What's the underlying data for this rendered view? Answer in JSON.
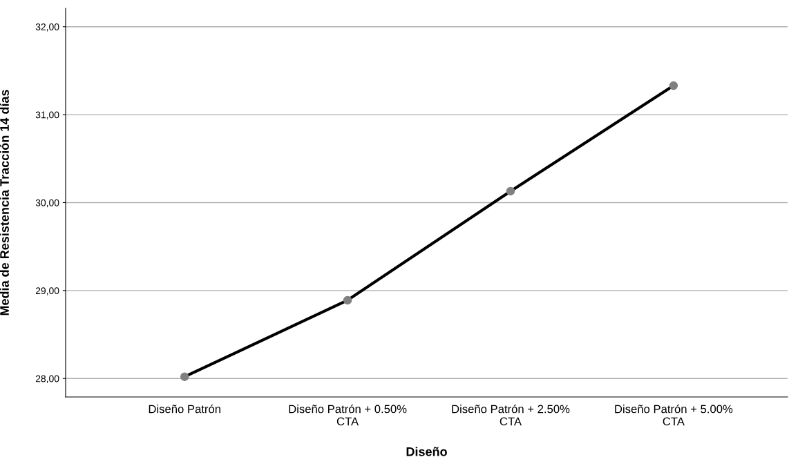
{
  "chart_data": {
    "type": "line",
    "xlabel": "Diseño",
    "ylabel": "Media de Resistencia Tracción 14 días",
    "categories": [
      "Diseño Patrón",
      "Diseño Patrón + 0.50%\nCTA",
      "Diseño Patrón + 2.50%\nCTA",
      "Diseño Patrón + 5.00%\nCTA"
    ],
    "series": [
      {
        "color": "#000000",
        "values": [
          28.02,
          28.89,
          30.13,
          31.33
        ]
      }
    ],
    "ylim": [
      27.79,
      32.21
    ],
    "yticks": [
      {
        "value": 28,
        "label": "28,00"
      },
      {
        "value": 29,
        "label": "29,00"
      },
      {
        "value": 30,
        "label": "30,00"
      },
      {
        "value": 31,
        "label": "31,00"
      },
      {
        "value": 32,
        "label": "32,00"
      }
    ],
    "grid": "y",
    "marker": "circle",
    "line_style": "solid",
    "legend": false
  }
}
